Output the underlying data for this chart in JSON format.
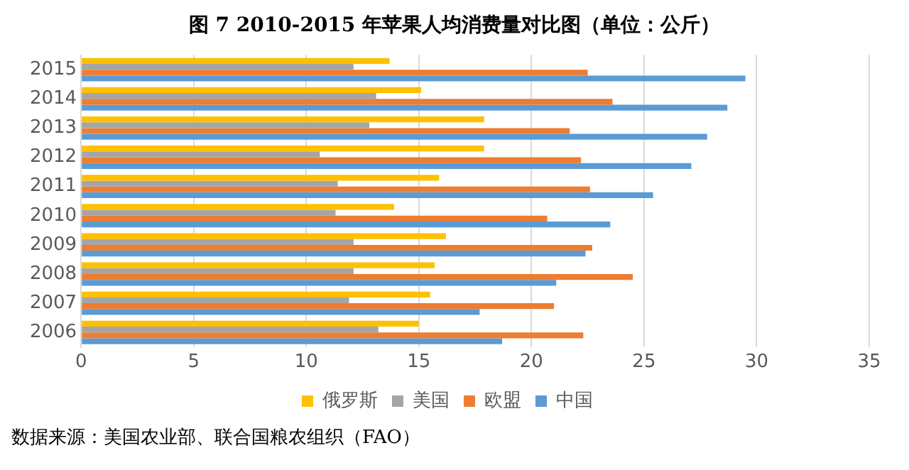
{
  "chart_data": {
    "type": "bar",
    "orientation": "horizontal",
    "title": "图 7  2010-2015 年苹果人均消费量对比图（单位：公斤）",
    "annotations": [
      "数据来源：美国农业部、联合国粮农组织（FAO）"
    ],
    "categories": [
      "2015",
      "2014",
      "2013",
      "2012",
      "2011",
      "2010",
      "2009",
      "2008",
      "2007",
      "2006"
    ],
    "series": [
      {
        "name": "俄罗斯",
        "color": "#ffc000",
        "values": [
          13.7,
          15.1,
          17.9,
          17.9,
          15.9,
          13.9,
          16.2,
          15.7,
          15.5,
          15.0
        ]
      },
      {
        "name": "美国",
        "color": "#a5a5a5",
        "values": [
          12.1,
          13.1,
          12.8,
          10.6,
          11.4,
          11.3,
          12.1,
          12.1,
          11.9,
          13.2
        ]
      },
      {
        "name": "欧盟",
        "color": "#ed7d31",
        "values": [
          22.5,
          23.6,
          21.7,
          22.2,
          22.6,
          20.7,
          22.7,
          24.5,
          21.0,
          22.3
        ]
      },
      {
        "name": "中国",
        "color": "#5b9bd5",
        "values": [
          29.5,
          28.7,
          27.8,
          27.1,
          25.4,
          23.5,
          22.4,
          21.1,
          17.7,
          18.7
        ]
      }
    ],
    "xlim": [
      0,
      35
    ],
    "xticks": [
      0,
      5,
      10,
      15,
      20,
      25,
      30,
      35
    ],
    "grid": "x",
    "legend": "bottom"
  }
}
